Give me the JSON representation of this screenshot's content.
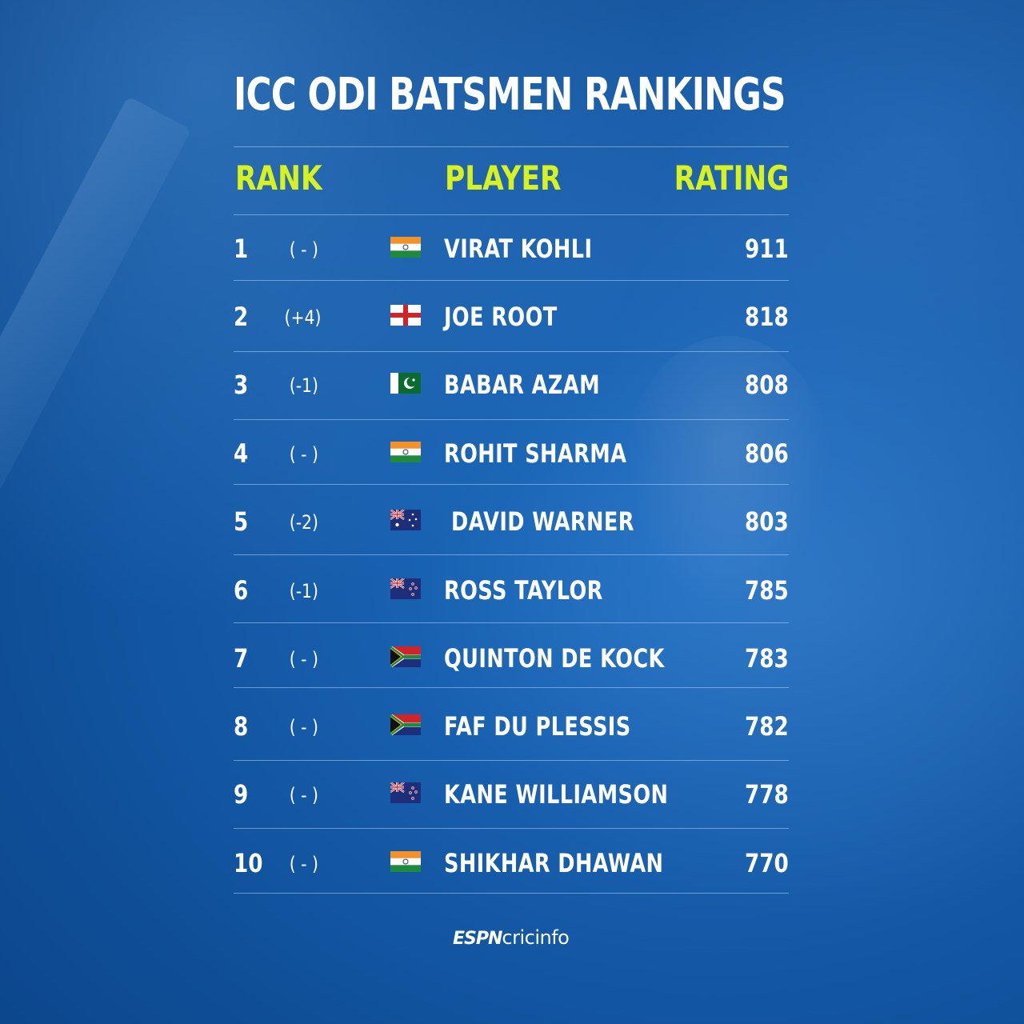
{
  "title": "ICC ODI BATSMEN RANKINGS",
  "headers": {
    "rank": "RANK",
    "player": "PLAYER",
    "rating": "RATING"
  },
  "rows": [
    {
      "rank": "1",
      "move": "( - )",
      "flag": "india-flag",
      "name": "VIRAT KOHLI",
      "rating": "911"
    },
    {
      "rank": "2",
      "move": "(+4)",
      "flag": "england-flag",
      "name": "JOE ROOT",
      "rating": "818"
    },
    {
      "rank": "3",
      "move": "(-1)",
      "flag": "pakistan-flag",
      "name": "BABAR AZAM",
      "rating": "808"
    },
    {
      "rank": "4",
      "move": "( - )",
      "flag": "india-flag",
      "name": "ROHIT SHARMA",
      "rating": "806"
    },
    {
      "rank": "5",
      "move": "(-2)",
      "flag": "australia-flag",
      "name": "DAVID WARNER",
      "rating": "803"
    },
    {
      "rank": "6",
      "move": "(-1)",
      "flag": "new-zealand-flag",
      "name": "ROSS TAYLOR",
      "rating": "785"
    },
    {
      "rank": "7",
      "move": "( - )",
      "flag": "south-africa-flag",
      "name": "QUINTON DE KOCK",
      "rating": "783"
    },
    {
      "rank": "8",
      "move": "( - )",
      "flag": "south-africa-flag",
      "name": "FAF DU PLESSIS",
      "rating": "782"
    },
    {
      "rank": "9",
      "move": "( - )",
      "flag": "new-zealand-flag",
      "name": "KANE WILLIAMSON",
      "rating": "778"
    },
    {
      "rank": "10",
      "move": "( - )",
      "flag": "india-flag",
      "name": "SHIKHAR DHAWAN",
      "rating": "770"
    }
  ],
  "logo": {
    "espn": "ESPN",
    "cricinfo": "cricinfo"
  },
  "colors": {
    "accent": "#d8f21e",
    "background": "#175fae",
    "text": "#ffffff"
  }
}
